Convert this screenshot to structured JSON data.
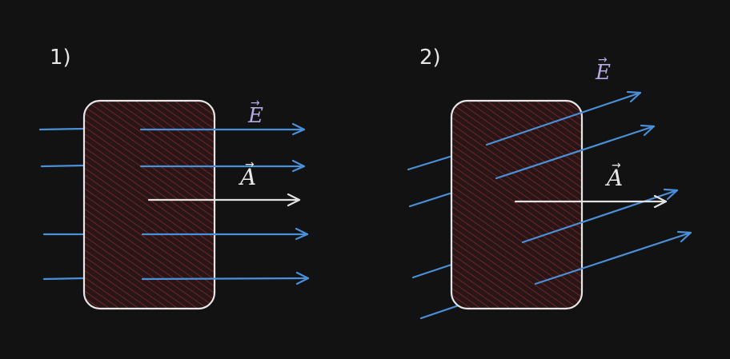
{
  "colors": {
    "background": "#121212",
    "field_line": "#4a90d9",
    "area_vector": "#e2e2e2",
    "e_label": "#b7a8e6",
    "a_label": "#e8e8e8",
    "surface_fill": "#2a1516",
    "surface_hatch": "#7a2a2e",
    "surface_border": "#e6e6e6"
  },
  "panels": [
    {
      "number_label": "1)",
      "e_label": "E",
      "a_label": "A",
      "field_orientation": "parallel to area vector"
    },
    {
      "number_label": "2)",
      "e_label": "E",
      "a_label": "A",
      "field_orientation": "at an angle to area vector"
    }
  ],
  "arrow_char": "→"
}
